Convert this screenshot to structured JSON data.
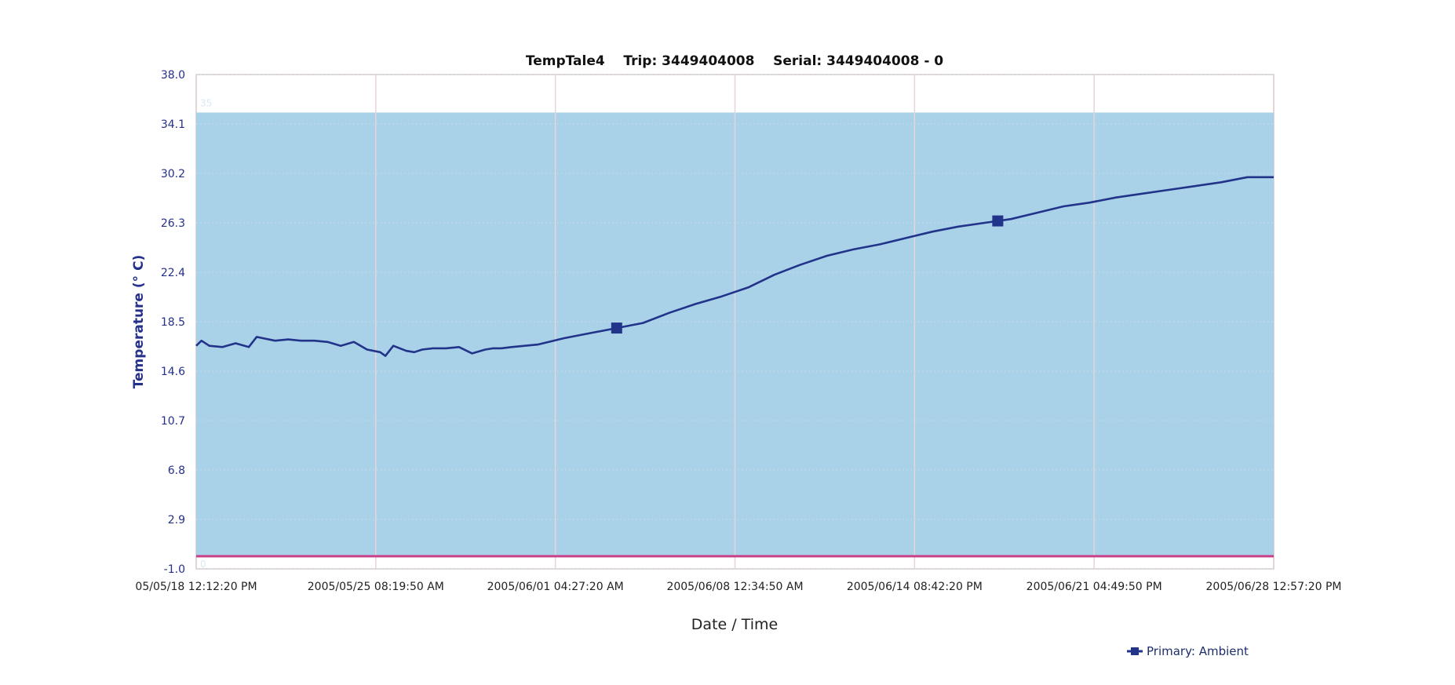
{
  "chart_data": {
    "type": "line",
    "title": "TempTale4    Trip: 3449404008    Serial: 3449404008 - 0",
    "xlabel": "Date / Time",
    "ylabel": "Temperature (° C)",
    "ylim": [
      -1.0,
      38.0
    ],
    "yticks": [
      "38.0",
      "34.1",
      "30.2",
      "26.3",
      "22.4",
      "18.5",
      "14.6",
      "10.7",
      "6.8",
      "2.9",
      "-1.0"
    ],
    "xticks": [
      "05/05/18 12:12:20 PM",
      "2005/05/25 08:19:50 AM",
      "2005/06/01 04:27:20 AM",
      "2005/06/08 12:34:50 AM",
      "2005/06/14 08:42:20 PM",
      "2005/06/21 04:49:50 PM",
      "2005/06/28 12:57:20 PM"
    ],
    "xlim": [
      "2005/05/18 12:12:20 PM",
      "2005/06/28 12:57:20 PM"
    ],
    "band": {
      "low": 0,
      "high": 35,
      "low_label": "0",
      "high_label": "35",
      "color": "#a9d2e8"
    },
    "limit_line": {
      "value": 0,
      "color": "#c94088"
    },
    "grid": true,
    "legend_position": "bottom-right",
    "series": [
      {
        "name": "Primary: Ambient",
        "color": "#22338a",
        "x_days": [
          0,
          0.2,
          0.5,
          1,
          1.5,
          2,
          2.3,
          3,
          3.5,
          4,
          4.5,
          5,
          5.5,
          6,
          6.5,
          7,
          7.2,
          7.5,
          8,
          8.3,
          8.6,
          9,
          9.5,
          10,
          10.5,
          11,
          11.3,
          11.6,
          12,
          13,
          14,
          15,
          16,
          17,
          18,
          19,
          20,
          21,
          22,
          23,
          24,
          25,
          26,
          27,
          28,
          29,
          30,
          31,
          32,
          33,
          34,
          35,
          36,
          37,
          38,
          39,
          40,
          41
        ],
        "values": [
          16.6,
          17.0,
          16.6,
          16.5,
          16.8,
          16.5,
          17.3,
          17.0,
          17.1,
          17.0,
          17.0,
          16.9,
          16.6,
          16.9,
          16.3,
          16.1,
          15.8,
          16.6,
          16.2,
          16.1,
          16.3,
          16.4,
          16.4,
          16.5,
          16.0,
          16.3,
          16.4,
          16.4,
          16.5,
          16.7,
          17.2,
          17.6,
          18.0,
          18.4,
          19.2,
          19.9,
          20.5,
          21.2,
          22.2,
          23.0,
          23.7,
          24.2,
          24.6,
          25.1,
          25.6,
          26.0,
          26.3,
          26.6,
          27.1,
          27.6,
          27.9,
          28.3,
          28.6,
          28.9,
          29.2,
          29.5,
          29.9,
          29.9
        ],
        "markers_at_days": [
          16,
          30.5
        ]
      }
    ]
  }
}
